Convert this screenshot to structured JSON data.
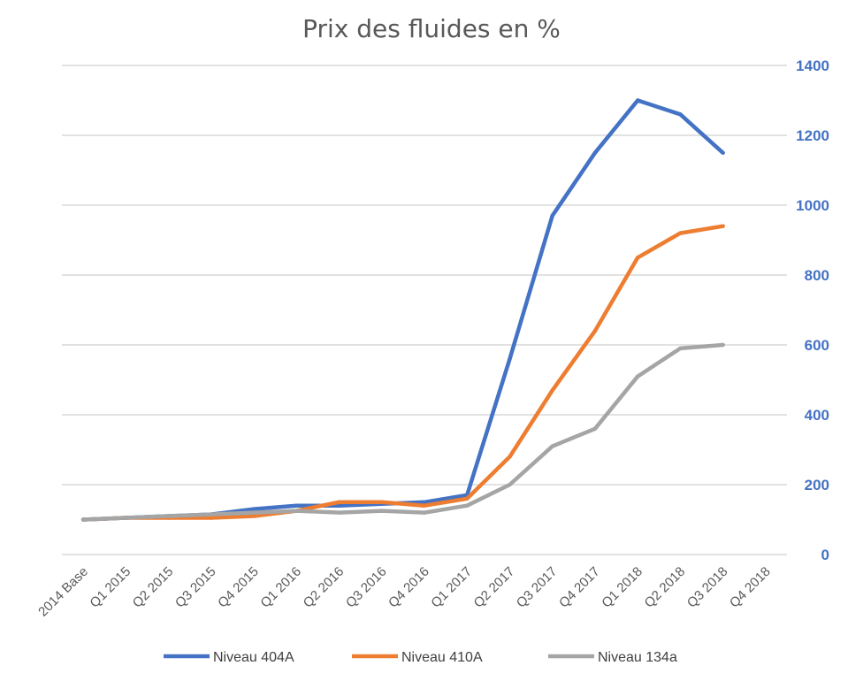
{
  "chart_data": {
    "type": "line",
    "title": "Prix des fluides en %",
    "categories": [
      "2014 Base",
      "Q1 2015",
      "Q2 2015",
      "Q3 2015",
      "Q4 2015",
      "Q1 2016",
      "Q2 2016",
      "Q3 2016",
      "Q4 2016",
      "Q1 2017",
      "Q2 2017",
      "Q3 2017",
      "Q4 2017",
      "Q1 2018",
      "Q2 2018",
      "Q3 2018",
      "Q4 2018"
    ],
    "series": [
      {
        "name": "Niveau 404A",
        "color": "#4472C4",
        "values": [
          100,
          105,
          110,
          115,
          130,
          140,
          140,
          145,
          150,
          170,
          560,
          970,
          1150,
          1300,
          1260,
          1150,
          null
        ]
      },
      {
        "name": "Niveau 410A",
        "color": "#ED7D31",
        "values": [
          100,
          105,
          105,
          105,
          110,
          125,
          150,
          150,
          140,
          160,
          280,
          470,
          640,
          850,
          920,
          940,
          null
        ]
      },
      {
        "name": "Niveau 134a",
        "color": "#A5A5A5",
        "values": [
          100,
          105,
          110,
          115,
          120,
          125,
          120,
          125,
          120,
          140,
          200,
          310,
          360,
          510,
          590,
          600,
          null
        ]
      }
    ],
    "ylim": [
      0,
      1400
    ],
    "yticks": [
      0,
      200,
      400,
      600,
      800,
      1000,
      1200,
      1400
    ],
    "ytick_color": "#4472C4",
    "grid": true,
    "y_axis_position": "right",
    "legend_position": "bottom"
  }
}
